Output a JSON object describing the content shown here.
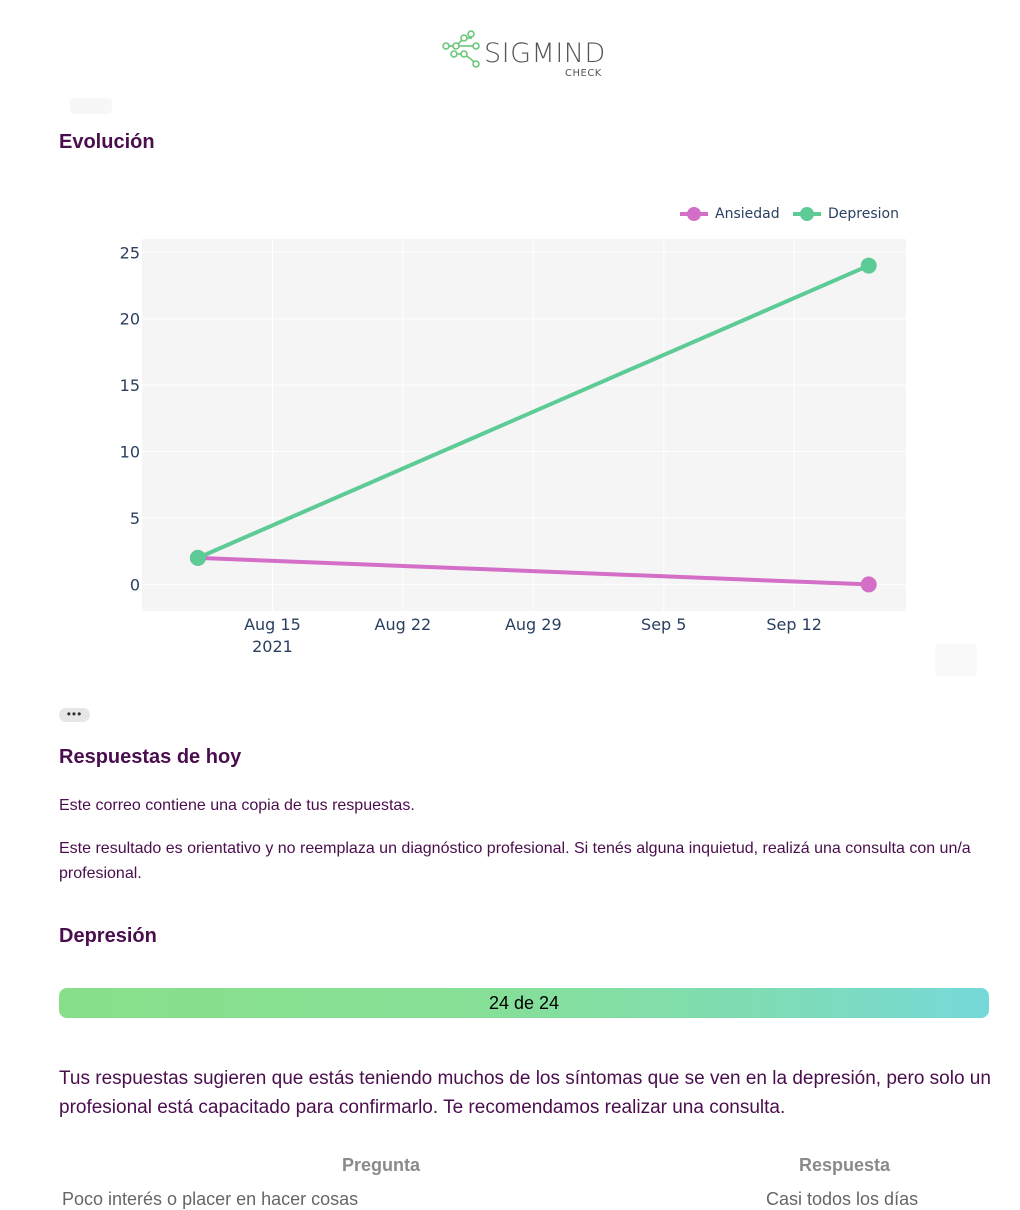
{
  "header": {
    "brand": "SIGMIND",
    "sub": "CHECK",
    "logo_color": "#69c77a"
  },
  "sections": {
    "evolution_title": "Evolución",
    "answers_title": "Respuestas de hoy",
    "answers_copy": "Este correo contiene una copia de tus respuestas.",
    "answers_disclaimer": "Este resultado es orientativo y no reemplaza un diagnóstico profesional. Si tenés alguna inquietud, realizá una consulta con un/a profesional.",
    "depression_title": "Depresión"
  },
  "more_button": "•••",
  "chart_data": {
    "type": "line",
    "x_axis": {
      "type": "date",
      "range": [
        "2021-08-08",
        "2021-09-18"
      ],
      "ticks": [
        "2021-08-15",
        "2021-08-22",
        "2021-08-29",
        "2021-09-05",
        "2021-09-12"
      ],
      "tick_labels": [
        "Aug 15",
        "Aug 22",
        "Aug 29",
        "Sep 5",
        "Sep 12"
      ],
      "year_label": "2021"
    },
    "y_axis": {
      "range": [
        -2,
        26
      ],
      "ticks": [
        0,
        5,
        10,
        15,
        20,
        25
      ]
    },
    "grid": true,
    "legend_position": "top-right",
    "series": [
      {
        "name": "Ansiedad",
        "color": "#d36fc6",
        "x": [
          "2021-08-11",
          "2021-09-16"
        ],
        "y": [
          2,
          0
        ]
      },
      {
        "name": "Depresion",
        "color": "#5dcb96",
        "x": [
          "2021-08-11",
          "2021-09-16"
        ],
        "y": [
          2,
          24
        ]
      }
    ]
  },
  "depression": {
    "score_label": "24 de 24",
    "score": 24,
    "max": 24,
    "message": "Tus respuestas sugieren que estás teniendo muchos de los síntomas que se ven en la depresión, pero solo un profesional está capacitado para confirmarlo. Te recomendamos realizar una consulta."
  },
  "table": {
    "headers": {
      "question": "Pregunta",
      "answer": "Respuesta"
    },
    "rows": [
      {
        "question": "Poco interés o placer en hacer cosas",
        "answer": "Casi todos los días"
      }
    ]
  }
}
